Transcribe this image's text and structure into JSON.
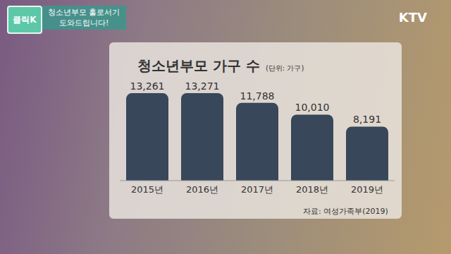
{
  "chart_data": {
    "type": "bar",
    "title": "청소년부모 가구 수",
    "subtitle": "(단위: 가구)",
    "source": "자료: 여성가족부(2019)",
    "categories": [
      "2015년",
      "2016년",
      "2017년",
      "2018년",
      "2019년"
    ],
    "values": [
      13261,
      13271,
      11788,
      10010,
      8191
    ],
    "value_labels": [
      "13,261",
      "13,271",
      "11,788",
      "10,010",
      "8,191"
    ],
    "color": "#38475a",
    "data_labels": true,
    "tick_labels": "x",
    "grid": false
  },
  "overlay": {
    "logo": "클릭K",
    "banner": [
      "청소년부모 홀로서기",
      "도와드립니다!"
    ],
    "channel": "KTV"
  }
}
